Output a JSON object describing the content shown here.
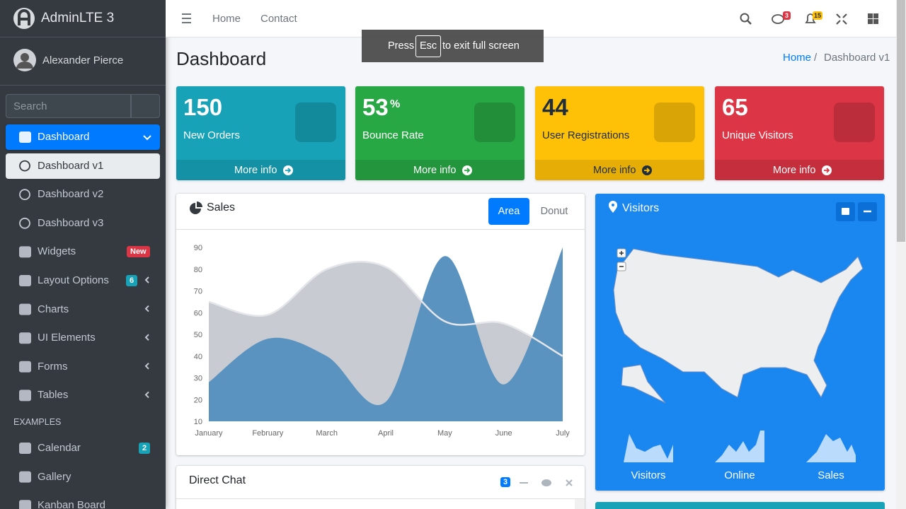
{
  "brand": "AdminLTE 3",
  "user": "Alexander Pierce",
  "search": {
    "placeholder": "Search"
  },
  "sidebar": {
    "menu": [
      {
        "label": "Dashboard"
      },
      {
        "label": "Dashboard v1"
      },
      {
        "label": "Dashboard v2"
      },
      {
        "label": "Dashboard v3"
      },
      {
        "label": "Widgets",
        "badge": "New"
      },
      {
        "label": "Layout Options",
        "badge": "6"
      },
      {
        "label": "Charts"
      },
      {
        "label": "UI Elements"
      },
      {
        "label": "Forms"
      },
      {
        "label": "Tables"
      }
    ],
    "header": "EXAMPLES",
    "examples": [
      {
        "label": "Calendar",
        "badge": "2"
      },
      {
        "label": "Gallery"
      },
      {
        "label": "Kanban Board"
      }
    ]
  },
  "navbar": {
    "links": [
      "Home",
      "Contact"
    ],
    "messages_badge": "3",
    "notifications_badge": "15"
  },
  "fullscreen_notice": {
    "before": "Press",
    "key": "Esc",
    "after": "to exit full screen"
  },
  "page": {
    "title": "Dashboard",
    "breadcrumb": {
      "items": [
        "Home",
        "Dashboard v1"
      ],
      "separator": "/"
    }
  },
  "stat_boxes": [
    {
      "value": 150,
      "label": "New Orders",
      "link": "More info",
      "color": "#17a2b8"
    },
    {
      "value": 53,
      "suffix": "%",
      "label": "Bounce Rate",
      "link": "More info",
      "color": "#28a745"
    },
    {
      "value": 44,
      "label": "User Registrations",
      "link": "More info",
      "color": "#ffc107"
    },
    {
      "value": 65,
      "label": "Unique Visitors",
      "link": "More info",
      "color": "#dc3545"
    }
  ],
  "sales": {
    "title": "Sales",
    "tabs": [
      "Area",
      "Donut"
    ],
    "chart": {
      "type": "area",
      "categories": [
        "January",
        "February",
        "March",
        "April",
        "May",
        "June",
        "July"
      ],
      "ylim": [
        10,
        90
      ],
      "yticks": [
        10,
        20,
        30,
        40,
        50,
        60,
        70,
        80,
        90
      ],
      "series": [
        {
          "color": "#c8cbd1",
          "values": [
            65,
            59,
            80,
            81,
            56,
            55,
            40
          ]
        },
        {
          "color": "#5a93bf",
          "values": [
            28,
            48,
            40,
            19,
            86,
            27,
            90
          ]
        }
      ]
    }
  },
  "visitors": {
    "title": "Visitors",
    "sparklines": [
      "Visitors",
      "Online",
      "Sales"
    ]
  },
  "direct_chat": {
    "title": "Direct Chat",
    "badge": "3"
  }
}
